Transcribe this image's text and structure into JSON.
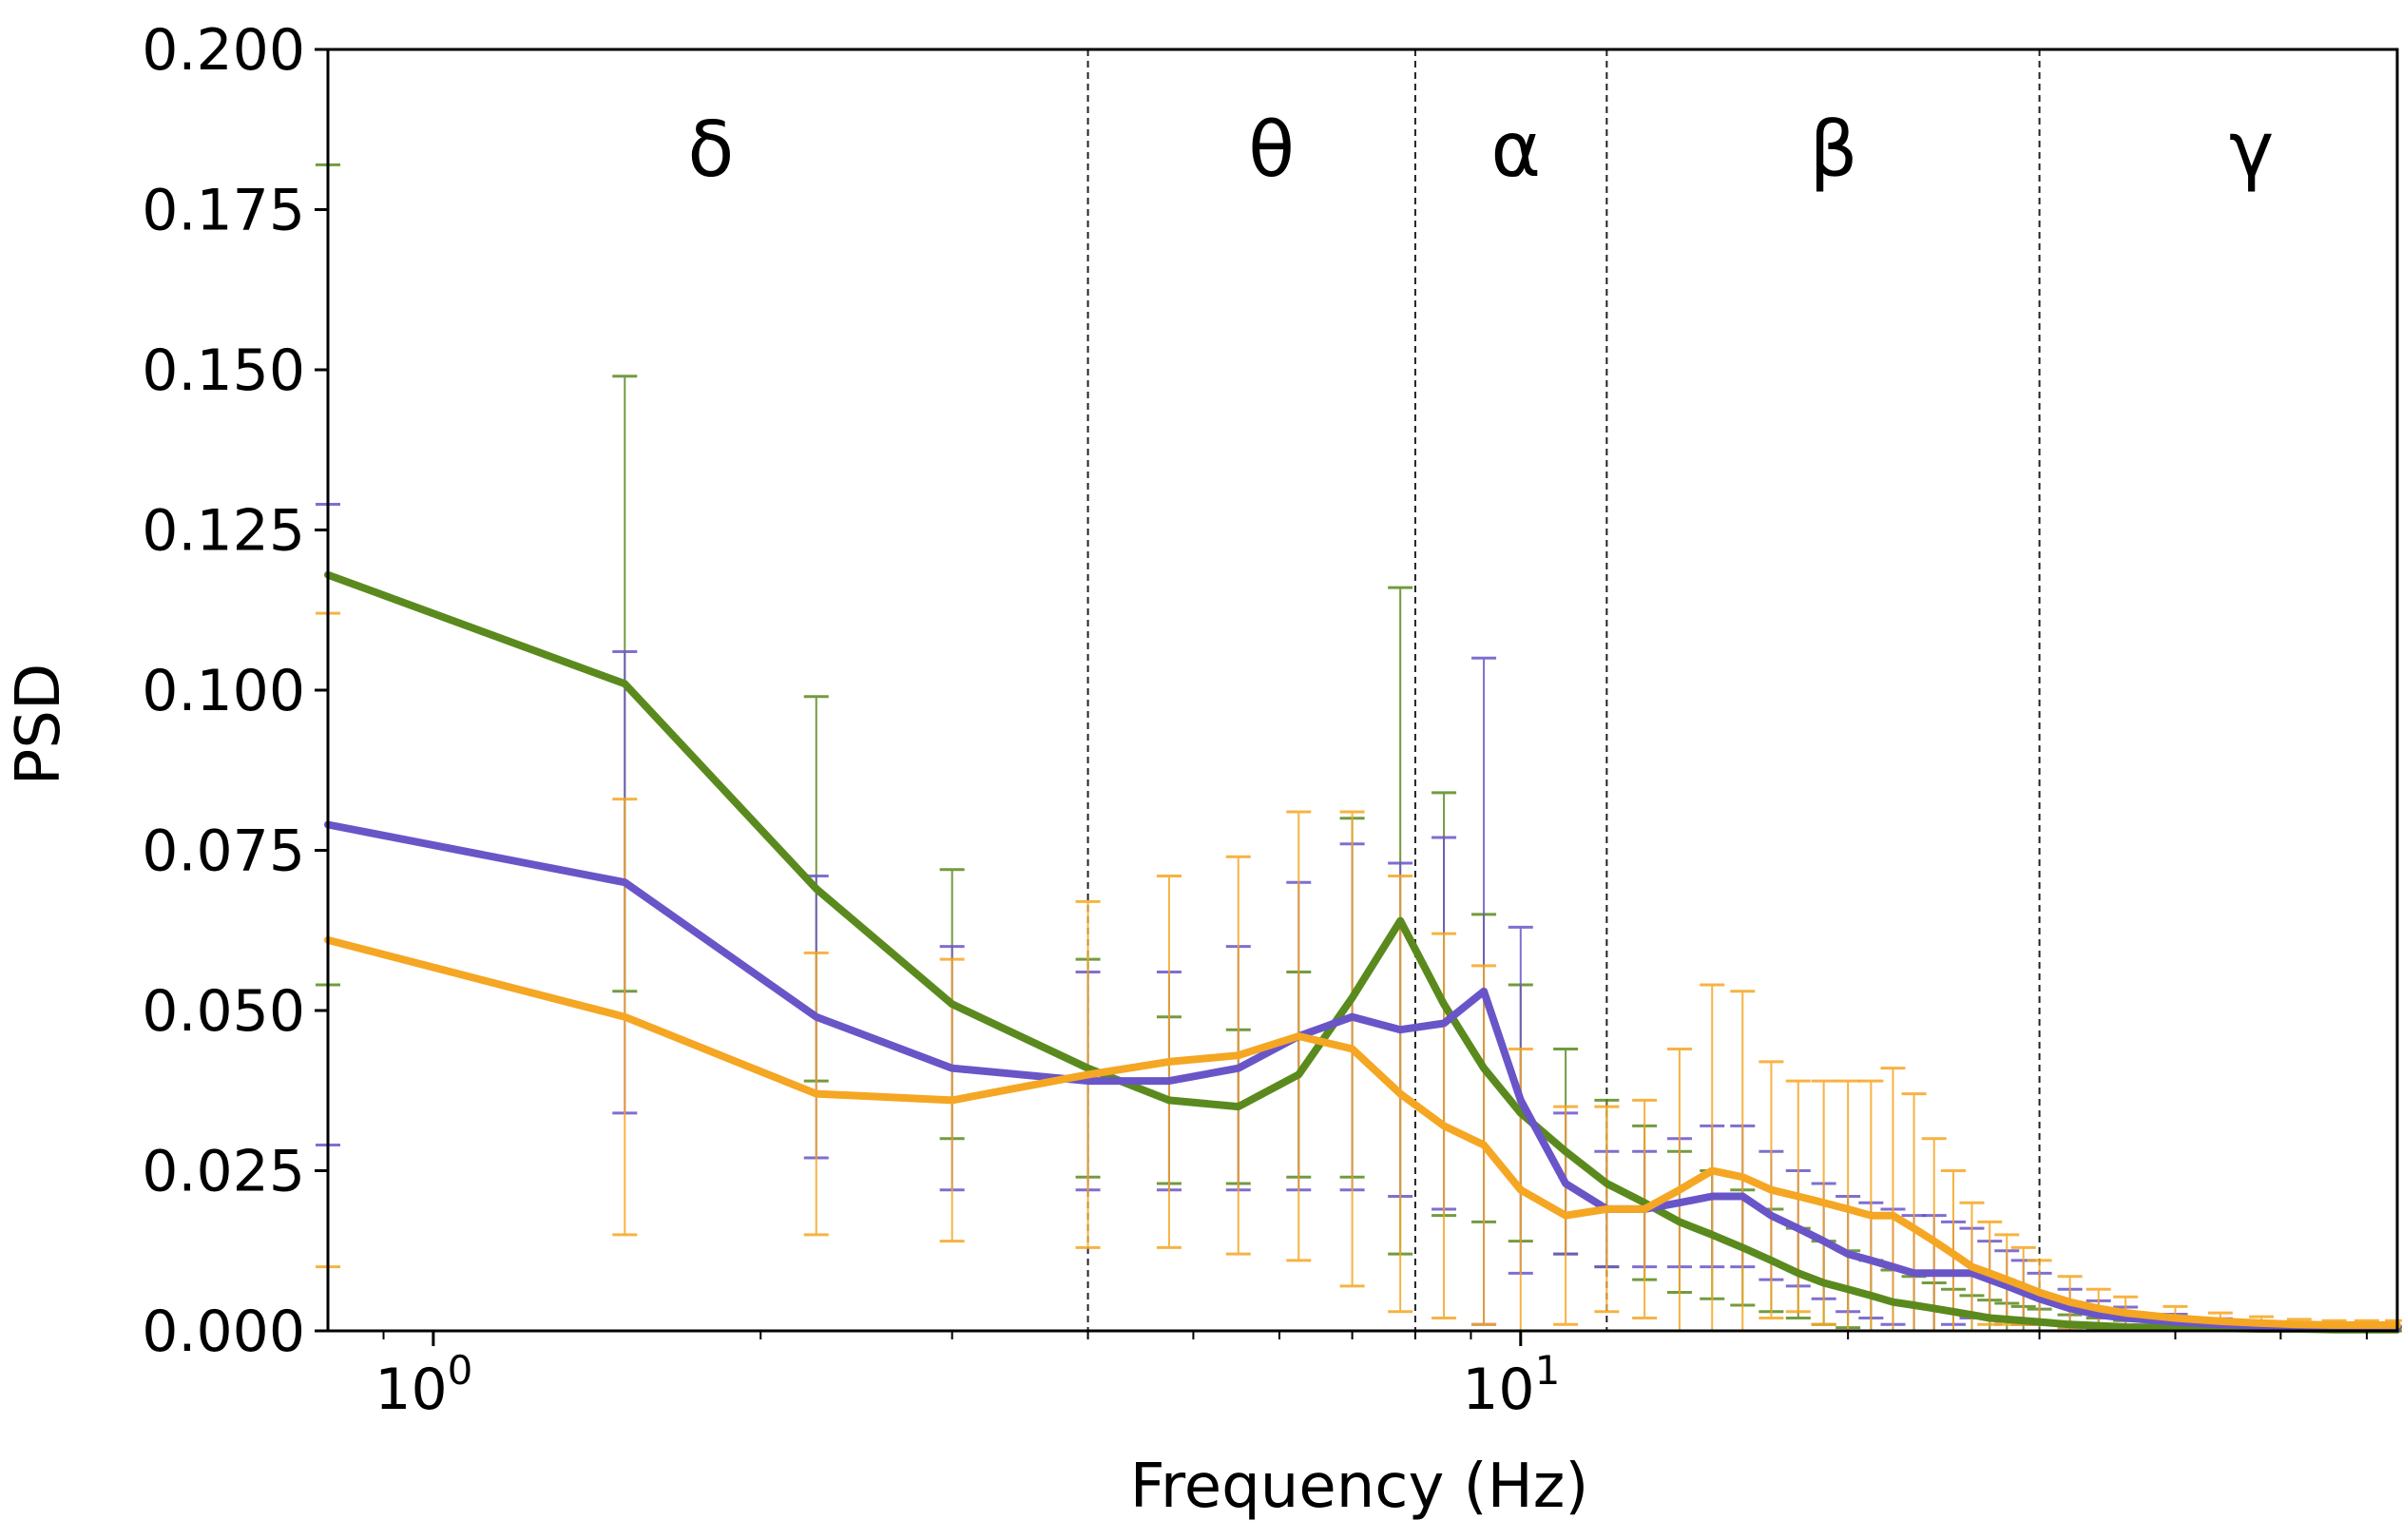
{
  "chart_data": {
    "type": "line",
    "title": "",
    "xlabel": "Frequency (Hz)",
    "ylabel": "PSD",
    "xscale": "log",
    "xlim": [
      0.8,
      64
    ],
    "ylim": [
      0,
      0.2
    ],
    "grid": false,
    "legend": "none",
    "y_ticks": [
      {
        "value": 0.0,
        "label": "0.000"
      },
      {
        "value": 0.025,
        "label": "0.025"
      },
      {
        "value": 0.05,
        "label": "0.050"
      },
      {
        "value": 0.075,
        "label": "0.075"
      },
      {
        "value": 0.1,
        "label": "0.100"
      },
      {
        "value": 0.125,
        "label": "0.125"
      },
      {
        "value": 0.15,
        "label": "0.150"
      },
      {
        "value": 0.175,
        "label": "0.175"
      },
      {
        "value": 0.2,
        "label": "0.200"
      }
    ],
    "x_ticks": [
      {
        "value": 1,
        "base": "10",
        "exp": "0"
      },
      {
        "value": 10,
        "base": "10",
        "exp": "1"
      }
    ],
    "band_boundaries": [
      4,
      8,
      12,
      30
    ],
    "bands": [
      {
        "label": "δ",
        "center": 1.8
      },
      {
        "label": "θ",
        "center": 5.9
      },
      {
        "label": "α",
        "center": 9.9
      },
      {
        "label": "β",
        "center": 19.4
      },
      {
        "label": "γ",
        "center": 47
      }
    ],
    "x": [
      0.8,
      1.5,
      2.25,
      3.0,
      4.0,
      4.75,
      5.5,
      6.25,
      7.0,
      7.75,
      8.5,
      9.25,
      10.0,
      11.0,
      12.0,
      13.0,
      14.0,
      15.0,
      16.0,
      17.0,
      18.0,
      19.0,
      20.0,
      21.0,
      22.0,
      23.0,
      24.0,
      25.0,
      26.0,
      27.0,
      28.0,
      29.0,
      30.0,
      32.0,
      34.0,
      36.0,
      40.0,
      44.0,
      48.0,
      52.0,
      56.0,
      60.0,
      64.0
    ],
    "series": [
      {
        "name": "green",
        "color": "#5a8a1e",
        "values": [
          0.118,
          0.101,
          0.069,
          0.051,
          0.041,
          0.036,
          0.035,
          0.04,
          0.052,
          0.064,
          0.051,
          0.041,
          0.034,
          0.028,
          0.023,
          0.02,
          0.017,
          0.015,
          0.013,
          0.011,
          0.009,
          0.0075,
          0.0065,
          0.0055,
          0.0045,
          0.004,
          0.0035,
          0.003,
          0.0025,
          0.002,
          0.0018,
          0.0016,
          0.0014,
          0.001,
          0.0008,
          0.0006,
          0.0005,
          0.0004,
          0.0003,
          0.0003,
          0.0002,
          0.0002,
          0.0002
        ],
        "errors": [
          0.064,
          0.048,
          0.03,
          0.021,
          0.017,
          0.013,
          0.012,
          0.016,
          0.028,
          0.052,
          0.033,
          0.024,
          0.02,
          0.016,
          0.013,
          0.012,
          0.011,
          0.01,
          0.009,
          0.008,
          0.007,
          0.0065,
          0.006,
          0.0055,
          0.005,
          0.0045,
          0.004,
          0.0035,
          0.003,
          0.0028,
          0.0025,
          0.0022,
          0.002,
          0.0015,
          0.0012,
          0.001,
          0.0008,
          0.0006,
          0.0005,
          0.0004,
          0.0003,
          0.0003,
          0.0003
        ]
      },
      {
        "name": "purple",
        "color": "#6a55c8",
        "values": [
          0.079,
          0.07,
          0.049,
          0.041,
          0.039,
          0.039,
          0.041,
          0.046,
          0.049,
          0.047,
          0.048,
          0.053,
          0.036,
          0.023,
          0.019,
          0.019,
          0.02,
          0.021,
          0.021,
          0.018,
          0.016,
          0.014,
          0.012,
          0.011,
          0.01,
          0.009,
          0.009,
          0.009,
          0.009,
          0.008,
          0.007,
          0.006,
          0.005,
          0.0035,
          0.0025,
          0.002,
          0.0014,
          0.001,
          0.0008,
          0.0006,
          0.0005,
          0.0004,
          0.0004
        ],
        "errors": [
          0.05,
          0.036,
          0.022,
          0.019,
          0.017,
          0.017,
          0.019,
          0.024,
          0.027,
          0.026,
          0.029,
          0.052,
          0.027,
          0.011,
          0.009,
          0.009,
          0.01,
          0.011,
          0.011,
          0.01,
          0.009,
          0.009,
          0.009,
          0.009,
          0.009,
          0.009,
          0.009,
          0.008,
          0.007,
          0.006,
          0.0055,
          0.005,
          0.004,
          0.003,
          0.0022,
          0.0017,
          0.0012,
          0.0009,
          0.0007,
          0.0005,
          0.0004,
          0.0003,
          0.0003
        ]
      },
      {
        "name": "orange",
        "color": "#f5a623",
        "values": [
          0.061,
          0.049,
          0.037,
          0.036,
          0.04,
          0.042,
          0.043,
          0.046,
          0.044,
          0.037,
          0.032,
          0.029,
          0.022,
          0.018,
          0.019,
          0.019,
          0.022,
          0.025,
          0.024,
          0.022,
          0.021,
          0.02,
          0.019,
          0.018,
          0.018,
          0.016,
          0.014,
          0.012,
          0.01,
          0.009,
          0.008,
          0.007,
          0.006,
          0.0045,
          0.0035,
          0.0028,
          0.002,
          0.0015,
          0.0012,
          0.001,
          0.0009,
          0.0009,
          0.0009
        ],
        "errors": [
          0.051,
          0.034,
          0.022,
          0.022,
          0.027,
          0.029,
          0.031,
          0.035,
          0.037,
          0.034,
          0.03,
          0.028,
          0.022,
          0.017,
          0.016,
          0.017,
          0.022,
          0.029,
          0.029,
          0.02,
          0.018,
          0.019,
          0.02,
          0.021,
          0.023,
          0.021,
          0.016,
          0.013,
          0.01,
          0.008,
          0.007,
          0.006,
          0.005,
          0.004,
          0.003,
          0.0025,
          0.0018,
          0.0013,
          0.001,
          0.0008,
          0.0007,
          0.0007,
          0.0007
        ]
      }
    ]
  }
}
